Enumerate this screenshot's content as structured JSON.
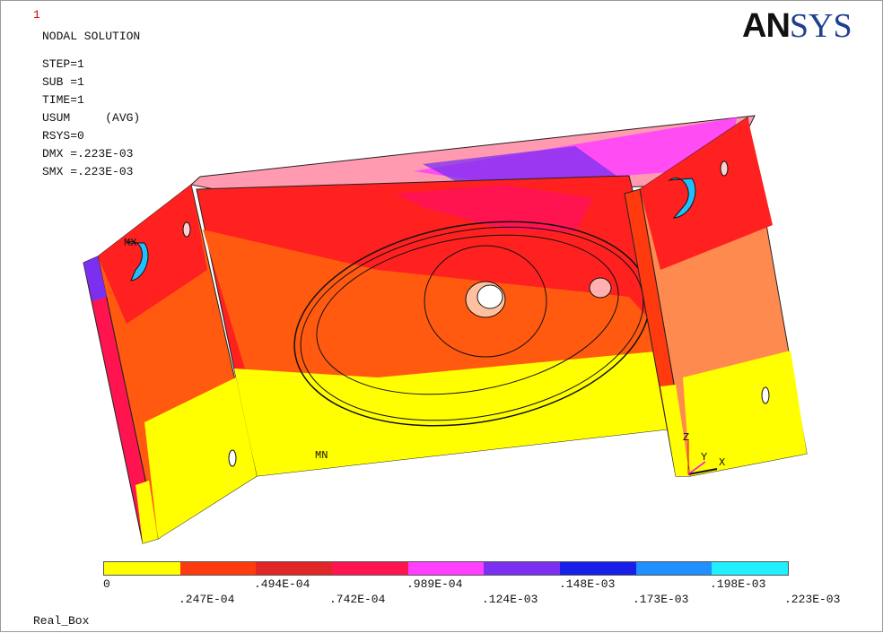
{
  "window_number": "1",
  "logo": {
    "part1": "AN",
    "part2": "SYS"
  },
  "title": "NODAL SOLUTION",
  "params": [
    "STEP=1",
    "SUB =1",
    "TIME=1",
    "USUM     (AVG)",
    "RSYS=0",
    "DMX =.223E-03",
    "SMX =.223E-03"
  ],
  "markers": {
    "max": "MX",
    "min": "MN"
  },
  "triad": {
    "x": "X",
    "y": "Y",
    "z": "Z"
  },
  "legend": {
    "colors": [
      "#ffff00",
      "#ff3a0e",
      "#e02626",
      "#ff1450",
      "#ff40ff",
      "#7b30f0",
      "#1820e8",
      "#2090ff",
      "#20f0ff"
    ],
    "labels_top": [
      "0",
      ".494E-04",
      ".989E-04",
      ".148E-03",
      ".198E-03"
    ],
    "labels_bottom": [
      ".247E-04",
      ".742E-04",
      ".124E-03",
      ".173E-03",
      ".223E-03"
    ]
  },
  "footer": "Real_Box"
}
